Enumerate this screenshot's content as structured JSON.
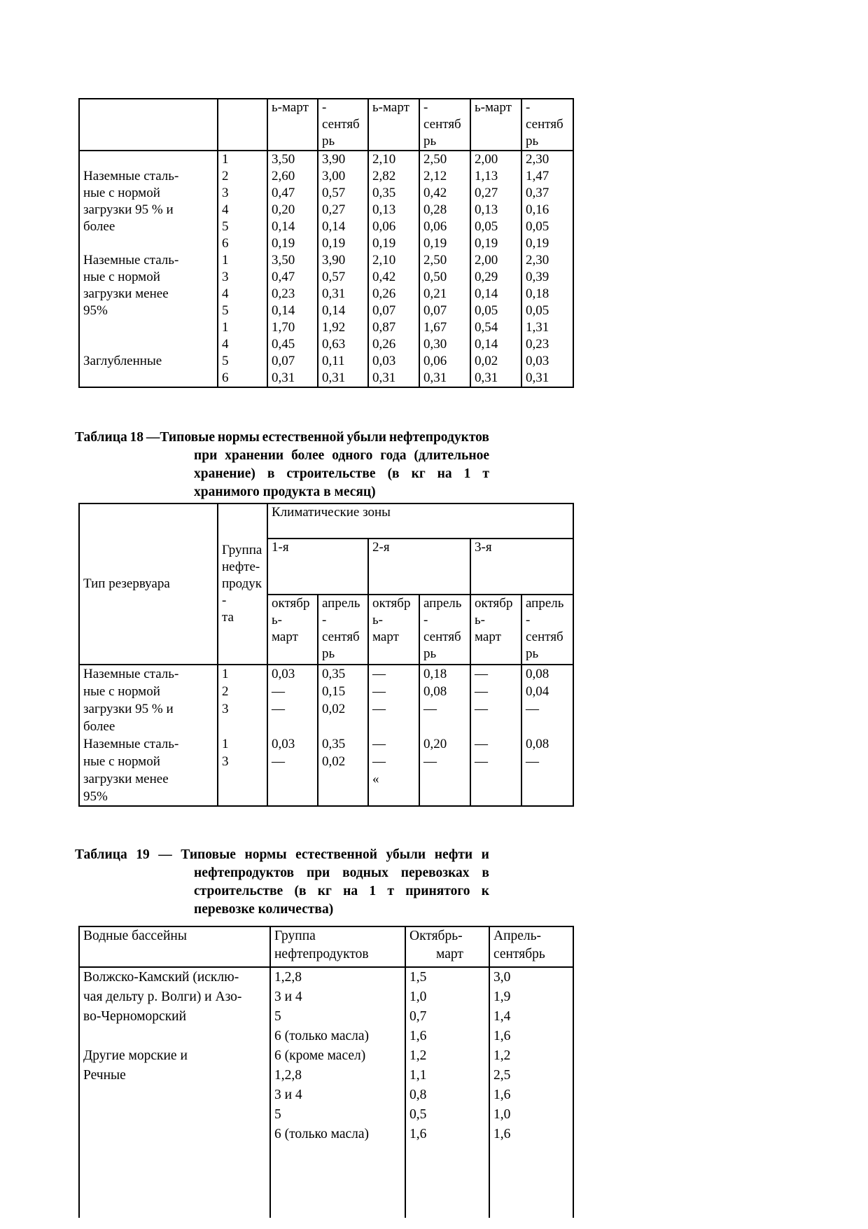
{
  "table17": {
    "header": [
      "ь-март",
      "-\nсентяб\nрь",
      "ь-март",
      "-\nсентяб\nрь",
      "ь-март",
      "-\nсентяб\nрь"
    ],
    "rows": [
      {
        "label": "",
        "group": "1",
        "v": [
          "3,50",
          "3,90",
          "2,10",
          "2,50",
          "2,00",
          "2,30"
        ]
      },
      {
        "label": "Наземные сталь-",
        "group": "2",
        "v": [
          "2,60",
          "3,00",
          "2,82",
          "2,12",
          "1,13",
          "1,47"
        ]
      },
      {
        "label": "ные с нормой",
        "group": "3",
        "v": [
          "0,47",
          "0,57",
          "0,35",
          "0,42",
          "0,27",
          "0,37"
        ]
      },
      {
        "label": "загрузки 95 % и",
        "group": "4",
        "v": [
          "0,20",
          "0,27",
          "0,13",
          "0,28",
          "0,13",
          "0,16"
        ]
      },
      {
        "label": "более",
        "group": "5",
        "v": [
          "0,14",
          "0,14",
          "0,06",
          "0,06",
          "0,05",
          "0,05"
        ]
      },
      {
        "label": "",
        "group": "6",
        "v": [
          "0,19",
          "0,19",
          "0,19",
          "0,19",
          "0,19",
          "0,19"
        ]
      },
      {
        "label": "Наземные сталь-",
        "group": "1",
        "v": [
          "3,50",
          "3,90",
          "2,10",
          "2,50",
          "2,00",
          "2,30"
        ]
      },
      {
        "label": "ные с нормой",
        "group": "3",
        "v": [
          "0,47",
          "0,57",
          "0,42",
          "0,50",
          "0,29",
          "0,39"
        ]
      },
      {
        "label": "загрузки менее",
        "group": "4",
        "v": [
          "0,23",
          "0,31",
          "0,26",
          "0,21",
          "0,14",
          "0,18"
        ]
      },
      {
        "label": "95%",
        "group": "5",
        "v": [
          "0,14",
          "0,14",
          "0,07",
          "0,07",
          "0,05",
          "0,05"
        ]
      },
      {
        "label": "",
        "group": "1",
        "v": [
          "1,70",
          "1,92",
          "0,87",
          "1,67",
          "0,54",
          "1,31"
        ]
      },
      {
        "label": "",
        "group": "4",
        "v": [
          "0,45",
          "0,63",
          "0,26",
          "0,30",
          "0,14",
          "0,23"
        ]
      },
      {
        "label": "Заглубленные",
        "group": "5",
        "v": [
          "0,07",
          "0,11",
          "0,03",
          "0,06",
          "0,02",
          "0,03"
        ]
      },
      {
        "label": "",
        "group": "6",
        "v": [
          "0,31",
          "0,31",
          "0,31",
          "0,31",
          "0,31",
          "0,31"
        ]
      }
    ]
  },
  "table18": {
    "caption_lines": [
      {
        "text": "Таблица 18 —Типовые нормы естественной убыли нефтепродуктов",
        "justify": true,
        "indent": 0
      },
      {
        "text": "при хранении более одного года (длительное",
        "justify": true,
        "indent": 170
      },
      {
        "text": "хранение) в строительстве (в кг на 1 т",
        "justify": true,
        "indent": 170
      },
      {
        "text": "хранимого продукта в месяц)",
        "justify": false,
        "indent": 170
      }
    ],
    "corner_label": "Тип резервуара",
    "group_label": "Группа\nнефте-\nпродук\n-\nта",
    "zones_title": "Климатические зоны",
    "zones": [
      "1-я",
      "2-я",
      "3-я"
    ],
    "period_headers": [
      "октябр\nь-\nмарт",
      "апрель\n-\nсентяб\nрь",
      "октябр\nь-\nмарт",
      "апрель\n-\nсентяб\nрь",
      "октябр\nь-\nмарт",
      "апрель\n-\nсентяб\nрь"
    ],
    "rows": [
      {
        "label": "Наземные сталь-",
        "group": "1",
        "v": [
          "0,03",
          "0,35",
          "—",
          "0,18",
          "—",
          "0,08"
        ]
      },
      {
        "label": "ные с нормой",
        "group": "2",
        "v": [
          "—",
          "0,15",
          "—",
          "0,08",
          "—",
          "0,04"
        ]
      },
      {
        "label": "загрузки 95 % и",
        "group": "3",
        "v": [
          "—",
          "0,02",
          "—",
          "—",
          "—",
          "—"
        ]
      },
      {
        "label": "более",
        "group": "",
        "v": [
          "",
          "",
          "",
          "",
          "",
          ""
        ]
      },
      {
        "label": "Наземные сталь-",
        "group": "1",
        "v": [
          "0,03",
          "0,35",
          "—",
          "0,20",
          "—",
          "0,08"
        ]
      },
      {
        "label": "ные с нормой",
        "group": "3",
        "v": [
          "—",
          "0,02",
          "—",
          "—",
          "—",
          "—"
        ]
      },
      {
        "label": "загрузки менее",
        "group": "",
        "v": [
          "",
          "",
          "«",
          "",
          "",
          ""
        ]
      },
      {
        "label": "95%",
        "group": "",
        "v": [
          "",
          "",
          "",
          "",
          "",
          ""
        ]
      }
    ]
  },
  "table19": {
    "caption_lines": [
      {
        "text": "Таблица 19 — Типовые нормы естественной убыли нефти и",
        "justify": true,
        "indent": 0
      },
      {
        "text": "нефтепродуктов при водных перевозках в",
        "justify": true,
        "indent": 170
      },
      {
        "text": "строительстве (в кг на 1 т принятого к",
        "justify": true,
        "indent": 170
      },
      {
        "text": "перевозке количества)",
        "justify": false,
        "indent": 170
      }
    ],
    "headers": [
      "Водные бассейны",
      "Группа\nнефтепродуктов",
      "Октябрь-\nмарт",
      "Апрель-\nсентябрь"
    ],
    "rows": [
      {
        "label": "Волжско-Камский (исклю-",
        "group": "1,2,8",
        "oct": "1,5",
        "apr": "3,0"
      },
      {
        "label": "чая дельту р. Волги) и Азо-",
        "group": "3 и 4",
        "oct": "1,0",
        "apr": "1,9"
      },
      {
        "label": "во-Черноморский",
        "group": "5",
        "oct": "0,7",
        "apr": "1,4"
      },
      {
        "label": "",
        "group": "6 (только масла)",
        "oct": "1,6",
        "apr": "1,6"
      },
      {
        "label": "Другие морские и",
        "group": "6 (кроме масел)",
        "oct": "1,2",
        "apr": "1,2"
      },
      {
        "label": "Речные",
        "group": "1,2,8",
        "oct": "1,1",
        "apr": "2,5"
      },
      {
        "label": "",
        "group": "3 и 4",
        "oct": "0,8",
        "apr": "1,6"
      },
      {
        "label": "",
        "group": "5",
        "oct": "0,5",
        "apr": "1,0"
      },
      {
        "label": "",
        "group": "6 (только масла)",
        "oct": "1,6",
        "apr": "1,6"
      }
    ]
  }
}
